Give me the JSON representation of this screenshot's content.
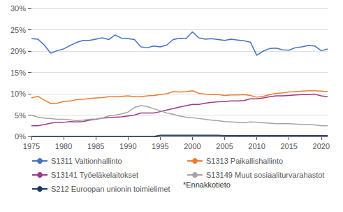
{
  "chart_data": {
    "type": "line",
    "x": [
      1975,
      1976,
      1977,
      1978,
      1979,
      1980,
      1981,
      1982,
      1983,
      1984,
      1985,
      1986,
      1987,
      1988,
      1989,
      1990,
      1991,
      1992,
      1993,
      1994,
      1995,
      1996,
      1997,
      1998,
      1999,
      2000,
      2001,
      2002,
      2003,
      2004,
      2005,
      2006,
      2007,
      2008,
      2009,
      2010,
      2011,
      2012,
      2013,
      2014,
      2015,
      2016,
      2017,
      2018,
      2019,
      2020,
      2021
    ],
    "series": [
      {
        "name": "S1311 Valtionhallinto",
        "color": "#4472C4",
        "values": [
          22.9,
          22.8,
          21.4,
          19.5,
          20.1,
          20.5,
          21.3,
          22.0,
          22.5,
          22.5,
          22.8,
          23.1,
          22.7,
          23.8,
          23.0,
          22.9,
          22.7,
          21.0,
          20.8,
          21.2,
          21.0,
          21.4,
          22.7,
          23.0,
          22.9,
          24.5,
          23.1,
          22.8,
          22.9,
          22.7,
          22.5,
          22.8,
          22.6,
          22.4,
          22.1,
          19.0,
          20.0,
          20.6,
          20.7,
          20.3,
          20.2,
          20.8,
          21.0,
          21.3,
          21.2,
          20.1,
          20.5
        ]
      },
      {
        "name": "S1313 Paikallishallinto",
        "color": "#ED7D31",
        "values": [
          9.0,
          9.4,
          8.5,
          7.7,
          7.8,
          8.2,
          8.3,
          8.6,
          8.7,
          8.9,
          9.0,
          9.1,
          9.3,
          9.3,
          9.4,
          9.5,
          9.3,
          9.3,
          9.5,
          9.6,
          9.8,
          10.0,
          10.5,
          10.4,
          10.5,
          10.7,
          10.1,
          9.9,
          9.8,
          9.8,
          9.6,
          9.7,
          9.7,
          9.8,
          9.6,
          9.2,
          9.4,
          9.8,
          10.1,
          10.2,
          10.4,
          10.5,
          10.6,
          10.7,
          10.7,
          10.6,
          10.5
        ]
      },
      {
        "name": "S13141 Työeläkelaitokset",
        "color": "#9E3A8C",
        "values": [
          2.5,
          2.5,
          2.8,
          3.1,
          3.3,
          3.3,
          3.5,
          3.4,
          3.5,
          3.8,
          4.0,
          4.3,
          4.4,
          4.5,
          4.6,
          4.8,
          5.0,
          5.5,
          5.5,
          5.5,
          5.8,
          6.2,
          6.5,
          6.9,
          7.2,
          7.5,
          7.5,
          7.8,
          8.0,
          8.1,
          8.2,
          8.3,
          8.3,
          8.4,
          8.8,
          8.8,
          9.0,
          9.3,
          9.5,
          9.5,
          9.6,
          9.7,
          9.8,
          9.8,
          9.9,
          9.5,
          9.3
        ]
      },
      {
        "name": "S13149 Muut sosiaaliturvarahastot",
        "color": "#A5A5A5",
        "values": [
          5.0,
          4.5,
          4.3,
          4.2,
          4.0,
          4.0,
          3.9,
          3.7,
          3.8,
          4.0,
          4.1,
          4.3,
          4.8,
          5.0,
          5.3,
          5.7,
          6.8,
          7.2,
          7.0,
          6.5,
          6.0,
          5.5,
          5.2,
          4.8,
          4.5,
          4.4,
          4.2,
          4.0,
          3.8,
          3.7,
          3.5,
          3.4,
          3.3,
          3.2,
          3.4,
          3.3,
          3.2,
          3.1,
          3.0,
          3.0,
          3.0,
          2.9,
          2.8,
          2.8,
          2.7,
          2.5,
          2.5
        ]
      },
      {
        "name": "S212 Euroopan unionin toimielimet",
        "color": "#1F3864",
        "values": [
          0.0,
          0.0,
          0.0,
          0.0,
          0.0,
          0.0,
          0.0,
          0.0,
          0.0,
          0.0,
          0.0,
          0.0,
          0.0,
          0.0,
          0.0,
          0.0,
          0.0,
          0.0,
          0.0,
          0.0,
          0.3,
          0.3,
          0.3,
          0.3,
          0.3,
          0.3,
          0.3,
          0.3,
          0.3,
          0.3,
          0.2,
          0.2,
          0.2,
          0.2,
          0.2,
          0.2,
          0.2,
          0.2,
          0.2,
          0.2,
          0.2,
          0.2,
          0.2,
          0.2,
          0.2,
          0.2,
          0.2
        ]
      }
    ],
    "annotations": [
      "*Ennakkotieto"
    ],
    "xlim": [
      1975,
      2021
    ],
    "xticks": [
      1975,
      1980,
      1985,
      1990,
      1995,
      2000,
      2005,
      2010,
      2015,
      2020
    ],
    "ylim": [
      0,
      30
    ],
    "yticks": [
      {
        "value": 0,
        "label": "0%"
      },
      {
        "value": 5,
        "label": "5%"
      },
      {
        "value": 10,
        "label": "10%"
      },
      {
        "value": 15,
        "label": "15%"
      },
      {
        "value": 20,
        "label": "20%"
      },
      {
        "value": 25,
        "label": "25%"
      },
      {
        "value": 30,
        "label": "30%"
      }
    ],
    "grid": "y",
    "legend": "lower left"
  }
}
